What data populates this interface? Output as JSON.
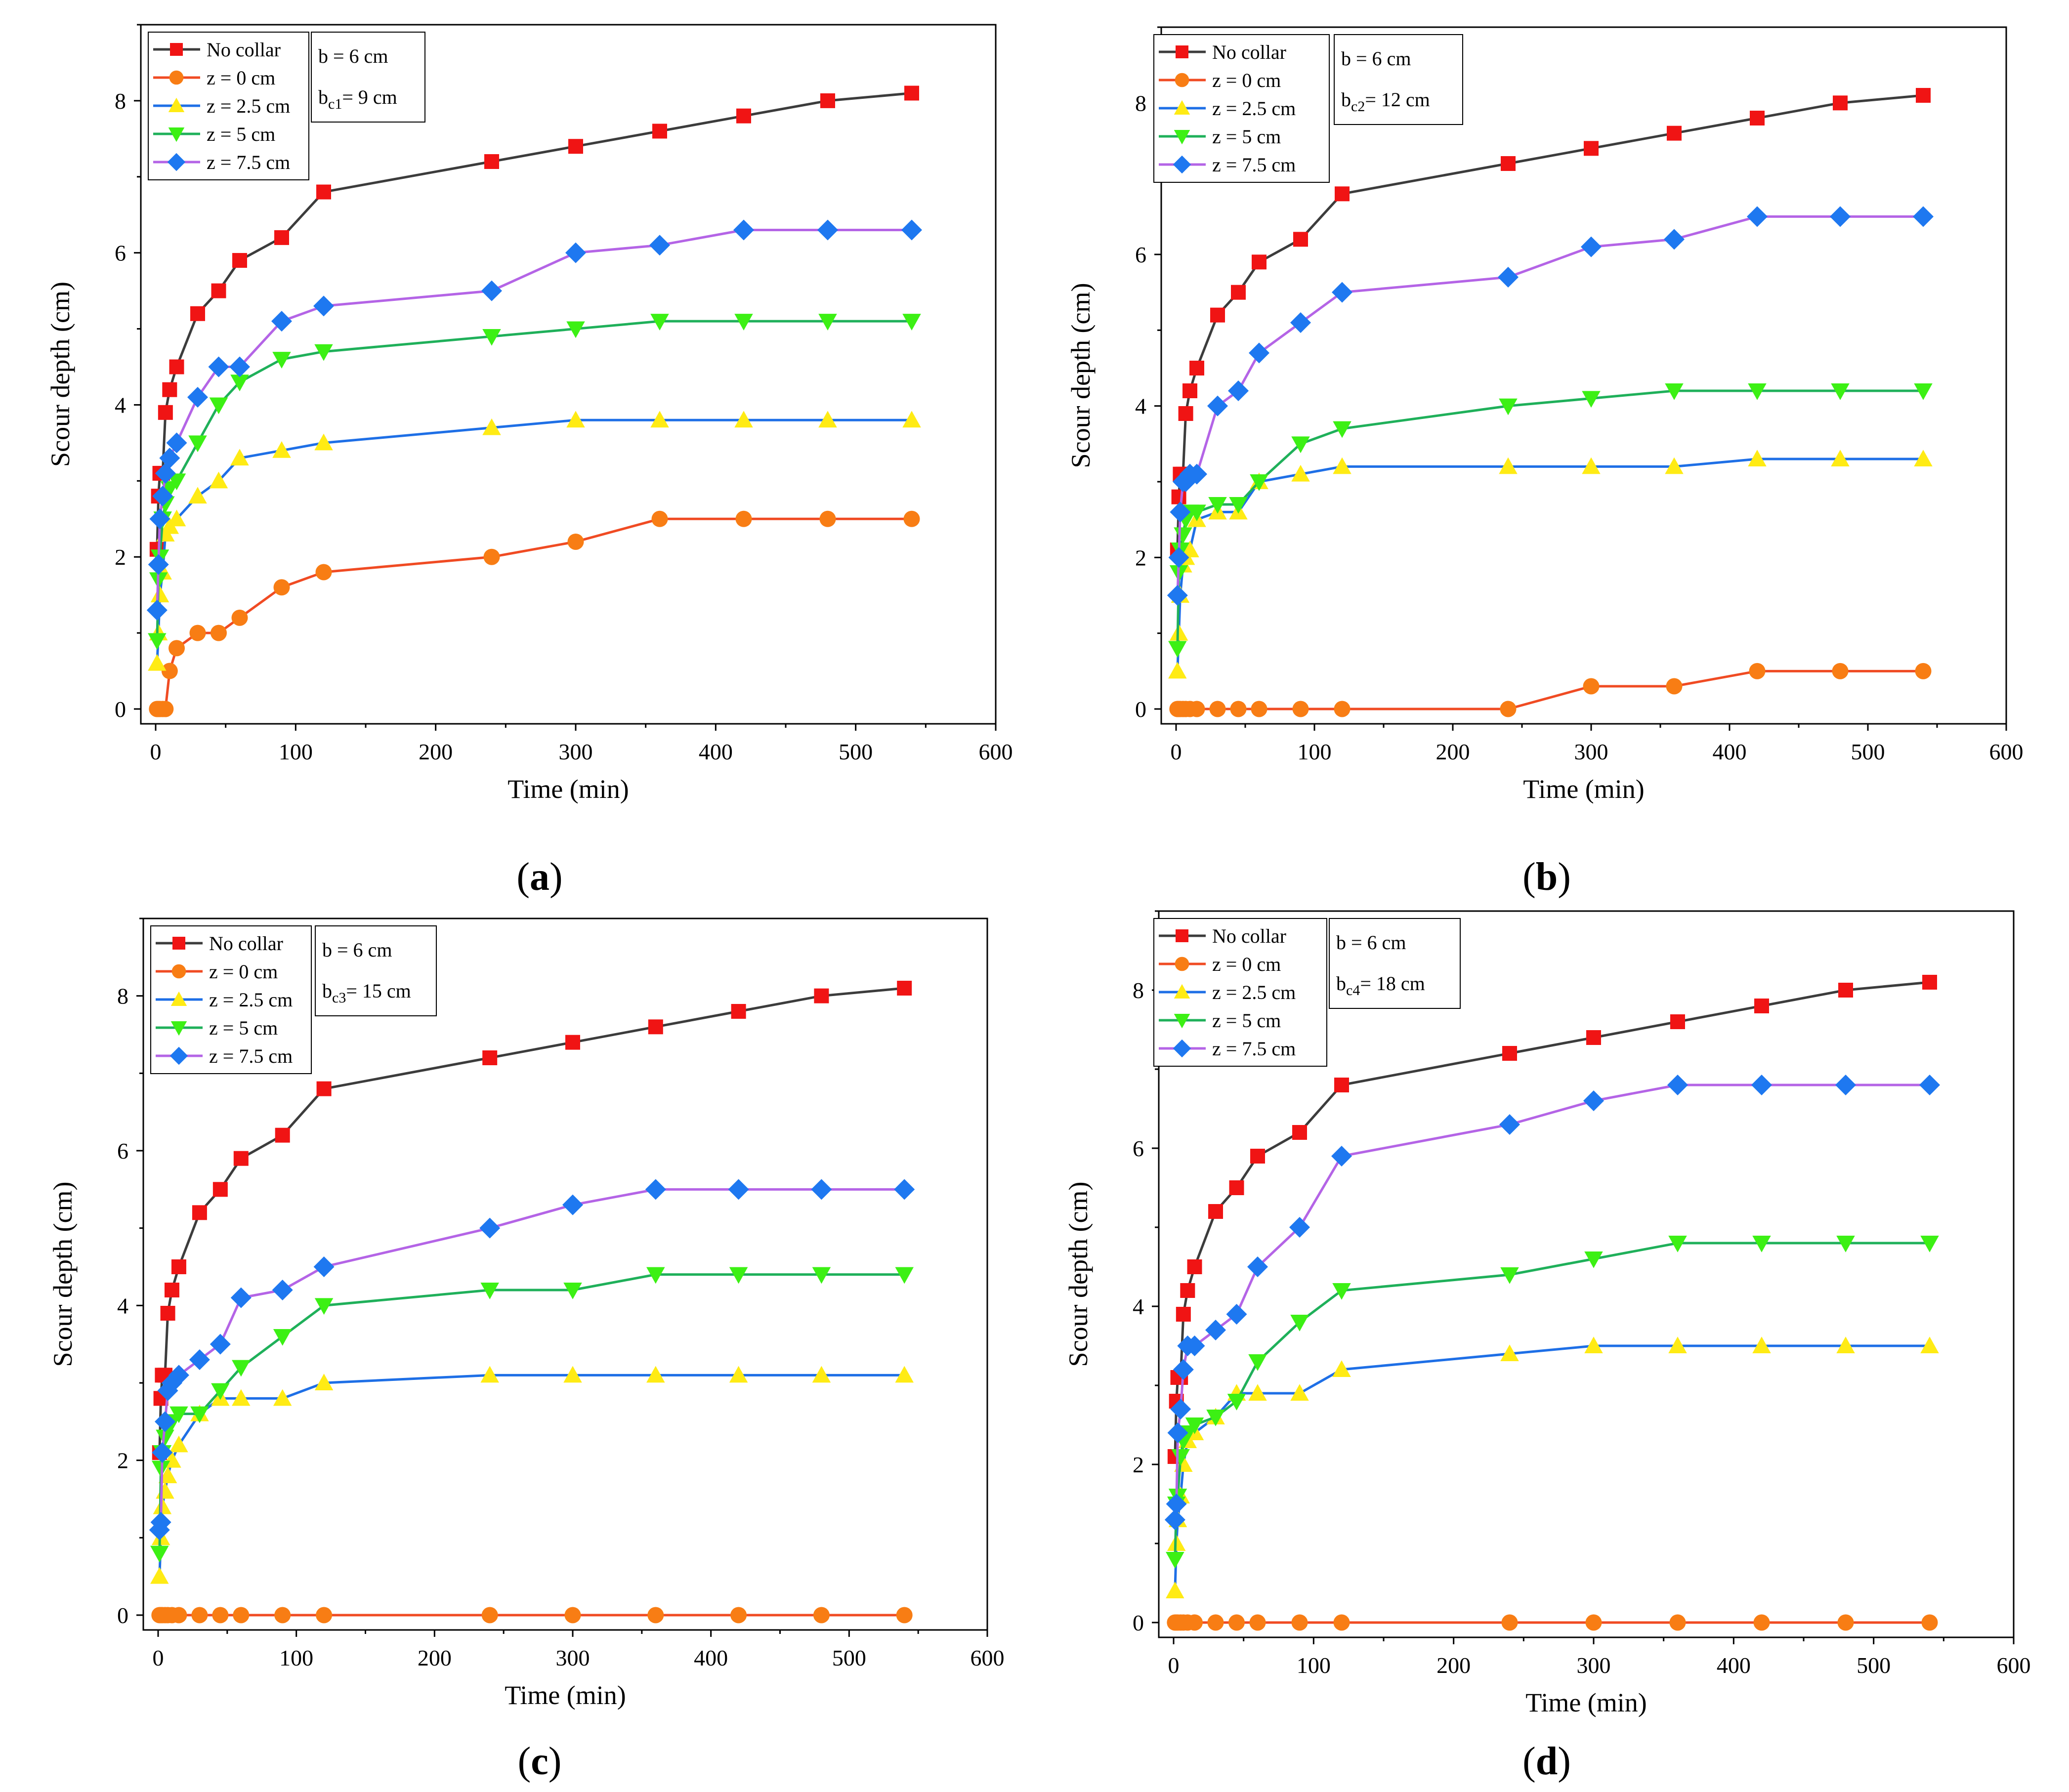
{
  "figure": {
    "panels": [
      {
        "label_letter": "a",
        "subscript": "c1",
        "collar_text": "= 9 cm"
      },
      {
        "label_letter": "b",
        "subscript": "c2",
        "collar_text": "= 12 cm"
      },
      {
        "label_letter": "c",
        "subscript": "c3",
        "collar_text": "= 15 cm"
      },
      {
        "label_letter": "d",
        "subscript": "c4",
        "collar_text": "= 18 cm"
      }
    ]
  },
  "chart_data": [
    {
      "type": "line",
      "panel": "a",
      "xlabel": "Time (min)",
      "ylabel": "Scour depth (cm)",
      "xlim": [
        0,
        600
      ],
      "ylim": [
        0,
        9
      ],
      "xticks": [
        0,
        100,
        200,
        300,
        400,
        500,
        600
      ],
      "yticks": [
        0,
        2,
        4,
        6,
        8
      ],
      "annotation_pier": "b = 6  cm",
      "annotation_collar_prefix": "b",
      "annotation_collar_sub": "c1",
      "annotation_collar_value": "= 9 cm",
      "x": [
        1,
        2,
        3,
        5,
        7,
        10,
        15,
        30,
        45,
        60,
        90,
        120,
        240,
        300,
        360,
        420,
        480,
        540
      ],
      "series": [
        {
          "name": "No collar",
          "color": "#3c3c3c",
          "marker": "square",
          "marker_color": "#f01414",
          "values": [
            2.1,
            2.8,
            3.1,
            3.1,
            3.9,
            4.2,
            4.5,
            5.2,
            5.5,
            5.9,
            6.2,
            6.8,
            7.2,
            7.4,
            7.6,
            7.8,
            8.0,
            8.1
          ]
        },
        {
          "name": "z = 0 cm",
          "color": "#f04b23",
          "marker": "circle",
          "marker_color": "#f87d14",
          "values": [
            0,
            0,
            0,
            0,
            0,
            0.5,
            0.8,
            1.0,
            1.0,
            1.2,
            1.6,
            1.8,
            2.0,
            2.2,
            2.5,
            2.5,
            2.5,
            2.5
          ]
        },
        {
          "name": "z = 2.5 cm",
          "color": "#1e6fe6",
          "marker": "triangle-up",
          "marker_color": "#ffeb14",
          "values": [
            0.6,
            1.0,
            1.5,
            1.8,
            2.3,
            2.4,
            2.5,
            2.8,
            3.0,
            3.3,
            3.4,
            3.5,
            3.7,
            3.8,
            3.8,
            3.8,
            3.8,
            3.8
          ]
        },
        {
          "name": "z = 5 cm",
          "color": "#1fb05a",
          "marker": "triangle-down",
          "marker_color": "#3cf014",
          "values": [
            0.9,
            1.7,
            2.0,
            2.5,
            2.7,
            2.9,
            3.0,
            3.5,
            4.0,
            4.3,
            4.6,
            4.7,
            4.9,
            5.0,
            5.1,
            5.1,
            5.1,
            5.1
          ]
        },
        {
          "name": "z = 7.5 cm",
          "color": "#b464e6",
          "marker": "diamond",
          "marker_color": "#1e78f0",
          "values": [
            1.3,
            1.9,
            2.5,
            2.8,
            3.1,
            3.3,
            3.5,
            4.1,
            4.5,
            4.5,
            5.1,
            5.3,
            5.5,
            6.0,
            6.1,
            6.3,
            6.3,
            6.3
          ]
        }
      ]
    },
    {
      "type": "line",
      "panel": "b",
      "xlabel": "Time (min)",
      "ylabel": "Scour depth (cm)",
      "xlim": [
        0,
        600
      ],
      "ylim": [
        0,
        9
      ],
      "xticks": [
        0,
        100,
        200,
        300,
        400,
        500,
        600
      ],
      "yticks": [
        0,
        2,
        4,
        6,
        8
      ],
      "annotation_pier": "b = 6  cm",
      "annotation_collar_prefix": "b",
      "annotation_collar_sub": "c2",
      "annotation_collar_value": "= 12 cm",
      "x": [
        1,
        2,
        3,
        5,
        7,
        10,
        15,
        30,
        45,
        60,
        90,
        120,
        240,
        300,
        360,
        420,
        480,
        540
      ],
      "series": [
        {
          "name": "No collar",
          "color": "#3c3c3c",
          "marker": "square",
          "marker_color": "#f01414",
          "values": [
            2.1,
            2.8,
            3.1,
            3.1,
            3.9,
            4.2,
            4.5,
            5.2,
            5.5,
            5.9,
            6.2,
            6.8,
            7.2,
            7.4,
            7.6,
            7.8,
            8.0,
            8.1
          ]
        },
        {
          "name": "z = 0 cm",
          "color": "#f04b23",
          "marker": "circle",
          "marker_color": "#f87d14",
          "values": [
            0,
            0,
            0,
            0,
            0,
            0,
            0,
            0,
            0,
            0,
            0,
            0,
            0,
            0.3,
            0.3,
            0.5,
            0.5,
            0.5
          ]
        },
        {
          "name": "z = 2.5 cm",
          "color": "#1e6fe6",
          "marker": "triangle-up",
          "marker_color": "#ffeb14",
          "values": [
            0.5,
            1.0,
            1.5,
            1.9,
            2.0,
            2.1,
            2.5,
            2.6,
            2.6,
            3.0,
            3.1,
            3.2,
            3.2,
            3.2,
            3.2,
            3.3,
            3.3,
            3.3
          ]
        },
        {
          "name": "z = 5 cm",
          "color": "#1fb05a",
          "marker": "triangle-down",
          "marker_color": "#3cf014",
          "values": [
            0.8,
            1.8,
            2.1,
            2.3,
            2.5,
            2.6,
            2.6,
            2.7,
            2.7,
            3.0,
            3.5,
            3.7,
            4.0,
            4.1,
            4.2,
            4.2,
            4.2,
            4.2
          ]
        },
        {
          "name": "z = 7.5 cm",
          "color": "#b464e6",
          "marker": "diamond",
          "marker_color": "#1e78f0",
          "values": [
            1.5,
            2.0,
            2.6,
            3.0,
            3.0,
            3.1,
            3.1,
            4.0,
            4.2,
            4.7,
            5.1,
            5.5,
            5.7,
            6.1,
            6.2,
            6.5,
            6.5,
            6.5
          ]
        }
      ]
    },
    {
      "type": "line",
      "panel": "c",
      "xlabel": "Time (min)",
      "ylabel": "Scour depth (cm)",
      "xlim": [
        0,
        600
      ],
      "ylim": [
        0,
        9
      ],
      "xticks": [
        0,
        100,
        200,
        300,
        400,
        500,
        600
      ],
      "yticks": [
        0,
        2,
        4,
        6,
        8
      ],
      "annotation_pier": "b = 6  cm",
      "annotation_collar_prefix": "b",
      "annotation_collar_sub": "c3",
      "annotation_collar_value": "= 15 cm",
      "x": [
        1,
        2,
        3,
        5,
        7,
        10,
        15,
        30,
        45,
        60,
        90,
        120,
        240,
        300,
        360,
        420,
        480,
        540
      ],
      "series": [
        {
          "name": "No collar",
          "color": "#3c3c3c",
          "marker": "square",
          "marker_color": "#f01414",
          "values": [
            2.1,
            2.8,
            3.1,
            3.1,
            3.9,
            4.2,
            4.5,
            5.2,
            5.5,
            5.9,
            6.2,
            6.8,
            7.2,
            7.4,
            7.6,
            7.8,
            8.0,
            8.1
          ]
        },
        {
          "name": "z = 0 cm",
          "color": "#f04b23",
          "marker": "circle",
          "marker_color": "#f87d14",
          "values": [
            0,
            0,
            0,
            0,
            0,
            0,
            0,
            0,
            0,
            0,
            0,
            0,
            0,
            0,
            0,
            0,
            0,
            0
          ]
        },
        {
          "name": "z = 2.5 cm",
          "color": "#1e6fe6",
          "marker": "triangle-up",
          "marker_color": "#ffeb14",
          "values": [
            0.5,
            1.0,
            1.4,
            1.6,
            1.8,
            2.0,
            2.2,
            2.6,
            2.8,
            2.8,
            2.8,
            3.0,
            3.1,
            3.1,
            3.1,
            3.1,
            3.1,
            3.1
          ]
        },
        {
          "name": "z = 5 cm",
          "color": "#1fb05a",
          "marker": "triangle-down",
          "marker_color": "#3cf014",
          "values": [
            0.8,
            1.9,
            2.1,
            2.3,
            2.4,
            2.5,
            2.6,
            2.6,
            2.9,
            3.2,
            3.6,
            4.0,
            4.2,
            4.2,
            4.4,
            4.4,
            4.4,
            4.4
          ]
        },
        {
          "name": "z = 7.5 cm",
          "color": "#b464e6",
          "marker": "diamond",
          "marker_color": "#1e78f0",
          "values": [
            1.1,
            1.2,
            2.1,
            2.5,
            2.9,
            3.0,
            3.1,
            3.3,
            3.5,
            4.1,
            4.2,
            4.5,
            5.0,
            5.3,
            5.5,
            5.5,
            5.5,
            5.5
          ]
        }
      ]
    },
    {
      "type": "line",
      "panel": "d",
      "xlabel": "Time (min)",
      "ylabel": "Scour depth (cm)",
      "xlim": [
        0,
        600
      ],
      "ylim": [
        0,
        9
      ],
      "xticks": [
        0,
        100,
        200,
        300,
        400,
        500,
        600
      ],
      "yticks": [
        0,
        2,
        4,
        6,
        8
      ],
      "annotation_pier": "b = 6  cm",
      "annotation_collar_prefix": "b",
      "annotation_collar_sub": "c4",
      "annotation_collar_value": "= 18 cm",
      "x": [
        1,
        2,
        3,
        5,
        7,
        10,
        15,
        30,
        45,
        60,
        90,
        120,
        240,
        300,
        360,
        420,
        480,
        540
      ],
      "series": [
        {
          "name": "No collar",
          "color": "#3c3c3c",
          "marker": "square",
          "marker_color": "#f01414",
          "values": [
            2.1,
            2.8,
            3.1,
            3.1,
            3.9,
            4.2,
            4.5,
            5.2,
            5.5,
            5.9,
            6.2,
            6.8,
            7.2,
            7.4,
            7.6,
            7.8,
            8.0,
            8.1
          ]
        },
        {
          "name": "z = 0 cm",
          "color": "#f04b23",
          "marker": "circle",
          "marker_color": "#f87d14",
          "values": [
            0,
            0,
            0,
            0,
            0,
            0,
            0,
            0,
            0,
            0,
            0,
            0,
            0,
            0,
            0,
            0,
            0,
            0
          ]
        },
        {
          "name": "z = 2.5 cm",
          "color": "#1e6fe6",
          "marker": "triangle-up",
          "marker_color": "#ffeb14",
          "values": [
            0.4,
            1.0,
            1.3,
            1.6,
            2.0,
            2.3,
            2.4,
            2.6,
            2.9,
            2.9,
            2.9,
            3.2,
            3.4,
            3.5,
            3.5,
            3.5,
            3.5,
            3.5
          ]
        },
        {
          "name": "z = 5 cm",
          "color": "#1fb05a",
          "marker": "triangle-down",
          "marker_color": "#3cf014",
          "values": [
            0.8,
            1.5,
            1.6,
            2.1,
            2.3,
            2.4,
            2.5,
            2.6,
            2.8,
            3.3,
            3.8,
            4.2,
            4.4,
            4.6,
            4.8,
            4.8,
            4.8,
            4.8
          ]
        },
        {
          "name": "z = 7.5 cm",
          "color": "#b464e6",
          "marker": "diamond",
          "marker_color": "#1e78f0",
          "values": [
            1.3,
            1.5,
            2.4,
            2.7,
            3.2,
            3.5,
            3.5,
            3.7,
            3.9,
            4.5,
            5.0,
            5.9,
            6.3,
            6.6,
            6.8,
            6.8,
            6.8,
            6.8
          ]
        }
      ]
    }
  ]
}
